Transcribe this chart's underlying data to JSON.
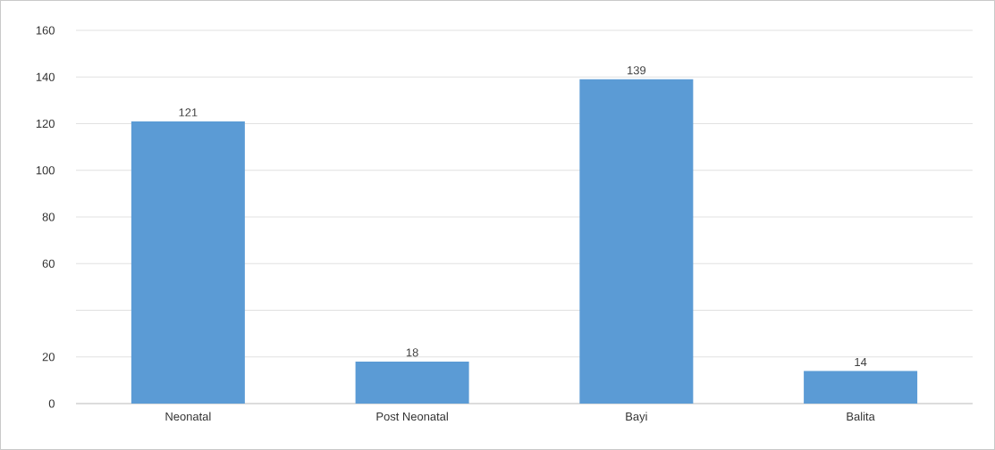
{
  "chart_data": {
    "type": "bar",
    "categories": [
      "Neonatal",
      "Post Neonatal",
      "Bayi",
      "Balita"
    ],
    "values": [
      121,
      18,
      139,
      14
    ],
    "color": "#5b9bd5",
    "ylim": [
      0,
      160
    ],
    "yticks": [
      0,
      20,
      {
        "value": 40,
        "label": null
      },
      60,
      80,
      100,
      120,
      140,
      160
    ],
    "grid": "y",
    "data_labels": true
  }
}
